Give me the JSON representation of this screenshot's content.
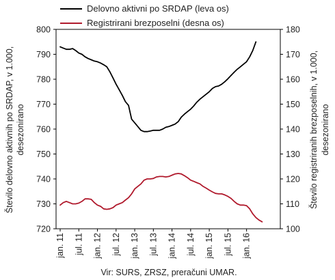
{
  "chart_data": {
    "type": "line",
    "source": "Vir: SURS, ZRSZ, preračuni UMAR.",
    "x_tick_labels": [
      "jan. 11",
      "jul. 11",
      "jan. 12",
      "jul. 12",
      "jan. 13",
      "jul. 13",
      "jan. 14",
      "jul. 14",
      "jan. 15",
      "jul. 15",
      "jan. 16"
    ],
    "x_tick_months": [
      0,
      6,
      12,
      18,
      24,
      30,
      36,
      42,
      48,
      54,
      60
    ],
    "x_range_months": [
      0,
      68
    ],
    "left_axis": {
      "label_line1": "Število delovno aktivnih po SRDAP, v 1.000,",
      "label_line2": "desezonirano",
      "ylim": [
        720,
        800
      ],
      "ticks": [
        720,
        730,
        740,
        750,
        760,
        770,
        780,
        790,
        800
      ]
    },
    "right_axis": {
      "label_line1": "Število registriranih brezposelnih, v 1.000,",
      "label_line2": "desezonirano",
      "ylim": [
        100,
        180
      ],
      "ticks": [
        100,
        110,
        120,
        130,
        140,
        150,
        160,
        170,
        180
      ]
    },
    "series": [
      {
        "name": "Delovno aktivni po SRDAP (leva os)",
        "axis": "left",
        "color": "#000000",
        "values": [
          793,
          792.5,
          792,
          792,
          792.3,
          791.5,
          790.5,
          790,
          789,
          788.3,
          787.8,
          787.3,
          787,
          786.5,
          785.8,
          785,
          783,
          780.5,
          778,
          775.8,
          773.5,
          771,
          769.5,
          764,
          762.5,
          761,
          759.5,
          759,
          759,
          759.2,
          759.5,
          759.5,
          759.5,
          760,
          760.7,
          761,
          761.5,
          762,
          763,
          764.8,
          766,
          767,
          768,
          769.3,
          770.8,
          772,
          773,
          774,
          775,
          776.3,
          777,
          777.3,
          778,
          779,
          780.2,
          781.5,
          782.8,
          784,
          785,
          786,
          787,
          789,
          791.5,
          795
        ]
      },
      {
        "name": "Registrirani brezposelni (desna os)",
        "axis": "right",
        "color": "#b0192c",
        "values": [
          109.5,
          110.5,
          111,
          110.5,
          110,
          110,
          110.3,
          111,
          112,
          112,
          111.8,
          110.5,
          109.5,
          109,
          108,
          107.8,
          108,
          108.5,
          109.5,
          110,
          110.5,
          111.5,
          112.5,
          114,
          116,
          117,
          118,
          119.5,
          120,
          120,
          120.2,
          120.8,
          121,
          121,
          120.8,
          121,
          121.5,
          122,
          122.2,
          122,
          121.3,
          120.5,
          119.5,
          119,
          118.5,
          118,
          117,
          116.3,
          115.5,
          114.8,
          114.2,
          114,
          114,
          113.6,
          113,
          112.2,
          111,
          110,
          109.5,
          109.5,
          109.3,
          108,
          106,
          104.5,
          103.5,
          102.8
        ]
      }
    ]
  }
}
